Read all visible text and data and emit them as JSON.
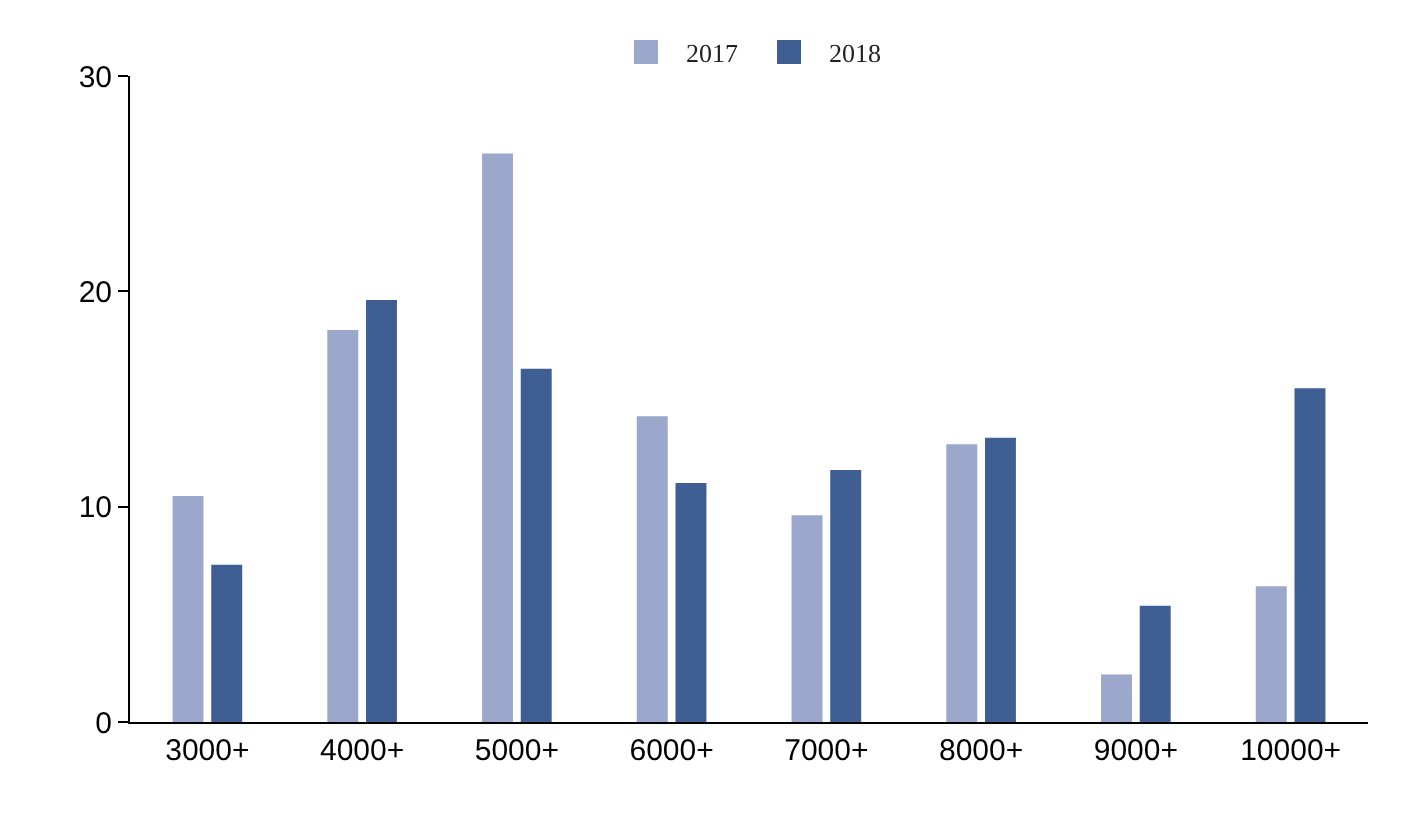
{
  "chart_data": {
    "type": "bar",
    "categories": [
      "3000+",
      "4000+",
      "5000+",
      "6000+",
      "7000+",
      "8000+",
      "9000+",
      "10000+"
    ],
    "series": [
      {
        "name": "2017",
        "color": "#9ba8cc",
        "values": [
          10.5,
          18.2,
          26.4,
          14.2,
          9.6,
          12.9,
          2.2,
          6.3
        ]
      },
      {
        "name": "2018",
        "color": "#3f5f94",
        "values": [
          7.3,
          19.6,
          16.4,
          11.1,
          11.7,
          13.2,
          5.4,
          15.5
        ]
      }
    ],
    "ylim": [
      0,
      30
    ],
    "yticks": [
      0,
      10,
      20,
      30
    ],
    "grid": false,
    "legend": "top"
  }
}
